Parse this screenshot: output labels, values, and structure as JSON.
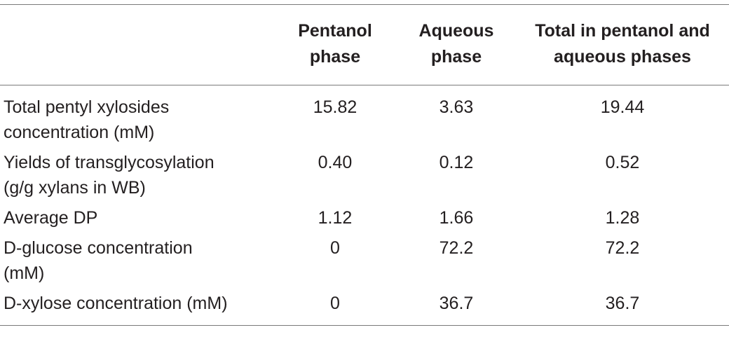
{
  "table": {
    "headers": [
      "",
      "Pentanol\nphase",
      "Aqueous\nphase",
      "Total in pentanol and\naqueous phases"
    ],
    "rows": [
      {
        "label": "Total pentyl xylosides\nconcentration (mM)",
        "pentanol": "15.82",
        "aqueous": "3.63",
        "total": "19.44"
      },
      {
        "label": "Yields of transglycosylation\n(g/g xylans in WB)",
        "pentanol": "0.40",
        "aqueous": "0.12",
        "total": "0.52"
      },
      {
        "label": "Average DP",
        "pentanol": "1.12",
        "aqueous": "1.66",
        "total": "1.28"
      },
      {
        "label": "D-glucose concentration\n(mM)",
        "pentanol": "0",
        "aqueous": "72.2",
        "total": "72.2"
      },
      {
        "label": "D-xylose concentration (mM)",
        "pentanol": "0",
        "aqueous": "36.7",
        "total": "36.7"
      }
    ]
  }
}
